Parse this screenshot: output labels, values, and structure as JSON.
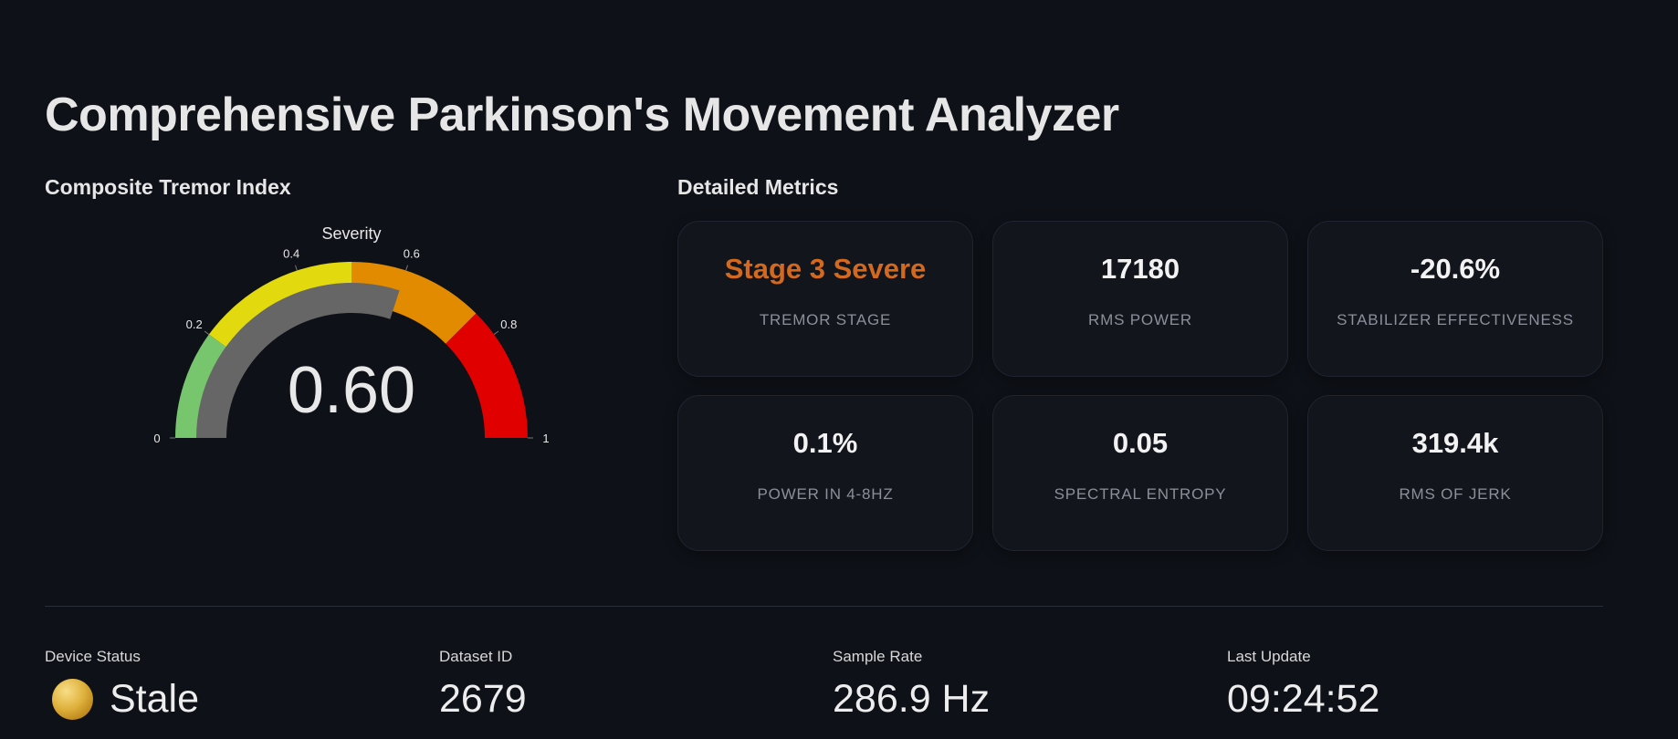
{
  "header": {
    "title": "Comprehensive Parkinson's Movement Analyzer"
  },
  "gauge_section": {
    "heading": "Composite Tremor Index"
  },
  "metrics_section": {
    "heading": "Detailed Metrics"
  },
  "chart_data": {
    "type": "gauge",
    "title": "Severity",
    "value": 0.6,
    "value_label": "0.60",
    "range": [
      0,
      1
    ],
    "ticks": [
      {
        "value": 0,
        "label": "0"
      },
      {
        "value": 0.2,
        "label": "0.2"
      },
      {
        "value": 0.4,
        "label": "0.4"
      },
      {
        "value": 0.6,
        "label": "0.6"
      },
      {
        "value": 0.8,
        "label": "0.8"
      },
      {
        "value": 1,
        "label": "1"
      }
    ],
    "bands": [
      {
        "from": 0,
        "to": 0.2,
        "color": "#77c66e"
      },
      {
        "from": 0.2,
        "to": 0.5,
        "color": "#e3d90f"
      },
      {
        "from": 0.5,
        "to": 0.75,
        "color": "#e28a00"
      },
      {
        "from": 0.75,
        "to": 1,
        "color": "#e00000"
      }
    ],
    "bar_color": "#666666"
  },
  "metrics": [
    {
      "value": "Stage 3 Severe",
      "label": "TREMOR STAGE",
      "value_color": "#d2691e"
    },
    {
      "value": "17180",
      "label": "RMS POWER"
    },
    {
      "value": "-20.6%",
      "label": "STABILIZER EFFECTIVENESS"
    },
    {
      "value": "0.1%",
      "label": "POWER IN 4-8HZ"
    },
    {
      "value": "0.05",
      "label": "SPECTRAL ENTROPY"
    },
    {
      "value": "319.4k",
      "label": "RMS OF JERK"
    }
  ],
  "status_bar": {
    "device_status": {
      "label": "Device Status",
      "value": "Stale",
      "indicator_color": "#e0b23e"
    },
    "dataset_id": {
      "label": "Dataset ID",
      "value": "2679"
    },
    "sample_rate": {
      "label": "Sample Rate",
      "value": "286.9 Hz"
    },
    "last_update": {
      "label": "Last Update",
      "value": "09:24:52"
    }
  }
}
